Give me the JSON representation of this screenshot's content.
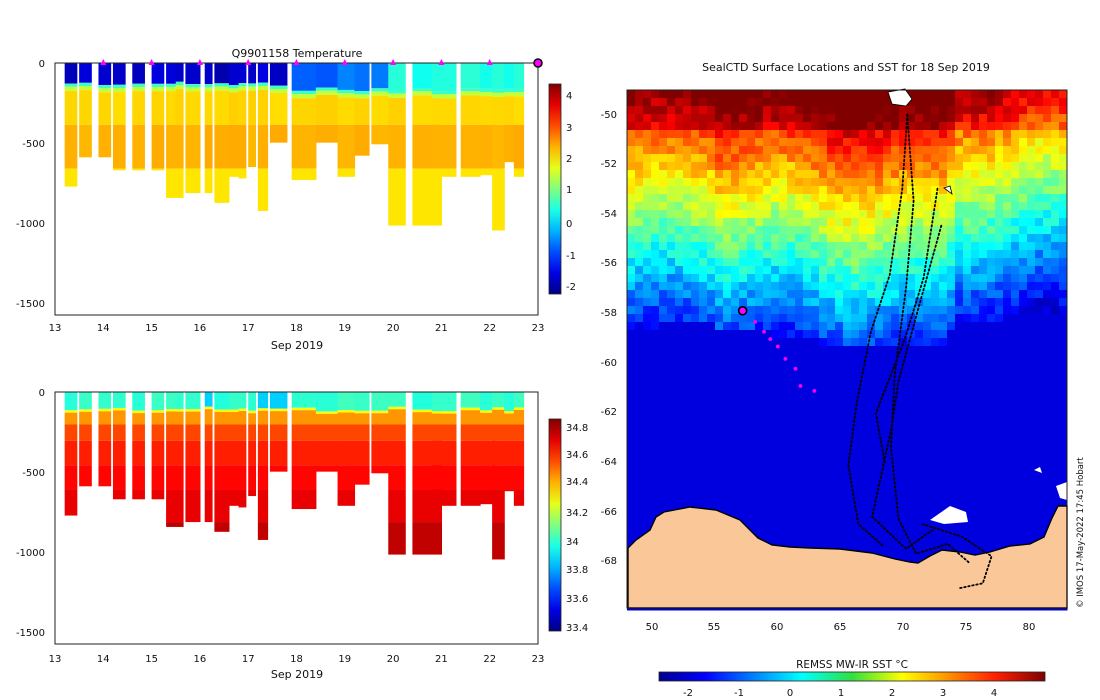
{
  "chart_data": [
    {
      "id": "temperature_section",
      "type": "heatmap",
      "title": "Q9901158  Temperature",
      "xlabel": "Sep 2019",
      "x_ticks": [
        "13",
        "14",
        "15",
        "16",
        "17",
        "18",
        "19",
        "20",
        "21",
        "22",
        "23"
      ],
      "x_range": [
        13,
        23
      ],
      "y_ticks": [
        "0",
        "-500",
        "-1000",
        "-1500"
      ],
      "y_range": [
        -1550,
        0
      ],
      "colorbar": {
        "ticks": [
          "4",
          "3",
          "2",
          "1",
          "0",
          "-1",
          "-2"
        ],
        "range": [
          -2.3,
          4.4
        ],
        "colormap": "jet"
      },
      "marker_days": [
        14,
        15,
        16,
        17,
        18,
        19,
        20,
        21,
        22
      ],
      "current_marker_day": 23,
      "profiles": [
        {
          "t": 13.2,
          "w": 0.25,
          "depth": 760
        },
        {
          "t": 13.5,
          "w": 0.25,
          "depth": 580
        },
        {
          "t": 13.9,
          "w": 0.25,
          "depth": 580
        },
        {
          "t": 14.2,
          "w": 0.25,
          "depth": 660
        },
        {
          "t": 14.6,
          "w": 0.25,
          "depth": 660
        },
        {
          "t": 15.0,
          "w": 0.25,
          "depth": 660
        },
        {
          "t": 15.3,
          "w": 0.2,
          "depth": 830
        },
        {
          "t": 15.5,
          "w": 0.15,
          "depth": 830
        },
        {
          "t": 15.7,
          "w": 0.3,
          "depth": 800
        },
        {
          "t": 16.1,
          "w": 0.15,
          "depth": 800
        },
        {
          "t": 16.3,
          "w": 0.3,
          "depth": 860
        },
        {
          "t": 16.6,
          "w": 0.2,
          "depth": 700
        },
        {
          "t": 16.8,
          "w": 0.15,
          "depth": 710
        },
        {
          "t": 17.0,
          "w": 0.15,
          "depth": 640
        },
        {
          "t": 17.2,
          "w": 0.2,
          "depth": 910
        },
        {
          "t": 17.45,
          "w": 0.35,
          "depth": 490
        },
        {
          "t": 17.9,
          "w": 0.5,
          "depth": 720
        },
        {
          "t": 18.4,
          "w": 0.45,
          "depth": 490
        },
        {
          "t": 18.85,
          "w": 0.35,
          "depth": 700
        },
        {
          "t": 19.2,
          "w": 0.3,
          "depth": 570
        },
        {
          "t": 19.55,
          "w": 0.35,
          "depth": 500
        },
        {
          "t": 19.9,
          "w": 0.35,
          "depth": 1000
        },
        {
          "t": 20.4,
          "w": 0.6,
          "depth": 1000
        },
        {
          "t": 20.8,
          "w": 0.5,
          "depth": 700
        },
        {
          "t": 21.4,
          "w": 0.4,
          "depth": 700
        },
        {
          "t": 21.8,
          "w": 0.3,
          "depth": 690
        },
        {
          "t": 22.05,
          "w": 0.25,
          "depth": 1030
        },
        {
          "t": 22.3,
          "w": 0.2,
          "depth": 610
        },
        {
          "t": 22.5,
          "w": 0.2,
          "depth": 700
        }
      ]
    },
    {
      "id": "salinity_section",
      "type": "heatmap",
      "title": "",
      "xlabel": "Sep 2019",
      "x_ticks": [
        "13",
        "14",
        "15",
        "16",
        "17",
        "18",
        "19",
        "20",
        "21",
        "22",
        "23"
      ],
      "x_range": [
        13,
        23
      ],
      "y_ticks": [
        "0",
        "-500",
        "-1000",
        "-1500"
      ],
      "y_range": [
        -1550,
        0
      ],
      "colorbar": {
        "ticks": [
          "34.8",
          "34.6",
          "34.4",
          "34.2",
          "34",
          "33.8",
          "33.6",
          "33.4"
        ],
        "range": [
          33.37,
          34.92
        ],
        "colormap": "jet"
      }
    },
    {
      "id": "sst_map",
      "type": "heatmap",
      "title": "SealCTD Surface Locations and SST for 18 Sep 2019",
      "x_ticks": [
        "50",
        "55",
        "60",
        "65",
        "70",
        "75",
        "80"
      ],
      "x_range": [
        48,
        83
      ],
      "y_ticks": [
        "-50",
        "-52",
        "-54",
        "-56",
        "-58",
        "-60",
        "-62",
        "-64",
        "-66",
        "-68"
      ],
      "y_range": [
        -70,
        -49
      ],
      "colorbar": {
        "label": "REMSS MW-IR SST °C",
        "ticks": [
          "-2",
          "-1",
          "0",
          "1",
          "2",
          "3",
          "4"
        ],
        "range": [
          -2.6,
          4.9
        ]
      },
      "latest_position": {
        "lon": 57.2,
        "lat": -57.95
      },
      "recent_track": [
        {
          "lon": 58.2,
          "lat": -58.4
        },
        {
          "lon": 58.9,
          "lat": -58.8
        },
        {
          "lon": 59.4,
          "lat": -59.1
        },
        {
          "lon": 60.0,
          "lat": -59.4
        },
        {
          "lon": 60.6,
          "lat": -59.9
        },
        {
          "lon": 61.4,
          "lat": -60.3
        },
        {
          "lon": 61.8,
          "lat": -61.0
        },
        {
          "lon": 62.9,
          "lat": -61.2
        }
      ],
      "credit": "© IMOS 17-May-2022 17:45 Hobart"
    }
  ]
}
